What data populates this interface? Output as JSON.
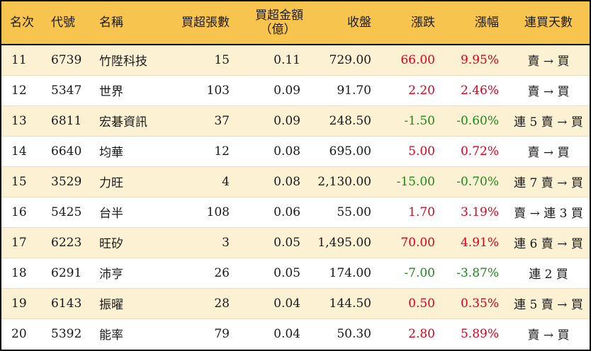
{
  "headers": {
    "rank": "名次",
    "code": "代號",
    "name": "名稱",
    "net_lots": "買超張數",
    "net_amount_line1": "買超金額",
    "net_amount_line2": "（億）",
    "close": "收盤",
    "change": "漲跌",
    "change_pct": "漲幅",
    "streak": "連買天數"
  },
  "colors": {
    "header_bg": "#f7c44e",
    "stripe_bg": "#fdf1d4",
    "up": "#e0001b",
    "down": "#1b8a1b"
  },
  "rows": [
    {
      "rank": "11",
      "code": "6739",
      "name": "竹陞科技",
      "net_lots": "15",
      "net_amount": "0.11",
      "close": "729.00",
      "change": "66.00",
      "change_pct": "9.95%",
      "streak": "賣 → 買",
      "dir": "up"
    },
    {
      "rank": "12",
      "code": "5347",
      "name": "世界",
      "net_lots": "103",
      "net_amount": "0.09",
      "close": "91.70",
      "change": "2.20",
      "change_pct": "2.46%",
      "streak": "賣 → 買",
      "dir": "up"
    },
    {
      "rank": "13",
      "code": "6811",
      "name": "宏碁資訊",
      "net_lots": "37",
      "net_amount": "0.09",
      "close": "248.50",
      "change": "-1.50",
      "change_pct": "-0.60%",
      "streak": "連 5 賣 → 買",
      "dir": "down"
    },
    {
      "rank": "14",
      "code": "6640",
      "name": "均華",
      "net_lots": "12",
      "net_amount": "0.08",
      "close": "695.00",
      "change": "5.00",
      "change_pct": "0.72%",
      "streak": "賣 → 買",
      "dir": "up"
    },
    {
      "rank": "15",
      "code": "3529",
      "name": "力旺",
      "net_lots": "4",
      "net_amount": "0.08",
      "close": "2,130.00",
      "change": "-15.00",
      "change_pct": "-0.70%",
      "streak": "連 7 賣 → 買",
      "dir": "down"
    },
    {
      "rank": "16",
      "code": "5425",
      "name": "台半",
      "net_lots": "108",
      "net_amount": "0.06",
      "close": "55.00",
      "change": "1.70",
      "change_pct": "3.19%",
      "streak": "賣 → 連 3 買",
      "dir": "up"
    },
    {
      "rank": "17",
      "code": "6223",
      "name": "旺矽",
      "net_lots": "3",
      "net_amount": "0.05",
      "close": "1,495.00",
      "change": "70.00",
      "change_pct": "4.91%",
      "streak": "連 6 賣 → 買",
      "dir": "up"
    },
    {
      "rank": "18",
      "code": "6291",
      "name": "沛亨",
      "net_lots": "26",
      "net_amount": "0.05",
      "close": "174.00",
      "change": "-7.00",
      "change_pct": "-3.87%",
      "streak": "連 2 買",
      "dir": "down"
    },
    {
      "rank": "19",
      "code": "6143",
      "name": "振曜",
      "net_lots": "28",
      "net_amount": "0.04",
      "close": "144.50",
      "change": "0.50",
      "change_pct": "0.35%",
      "streak": "連 5 賣 → 買",
      "dir": "up"
    },
    {
      "rank": "20",
      "code": "5392",
      "name": "能率",
      "net_lots": "79",
      "net_amount": "0.04",
      "close": "50.30",
      "change": "2.80",
      "change_pct": "5.89%",
      "streak": "賣 → 買",
      "dir": "up"
    }
  ]
}
